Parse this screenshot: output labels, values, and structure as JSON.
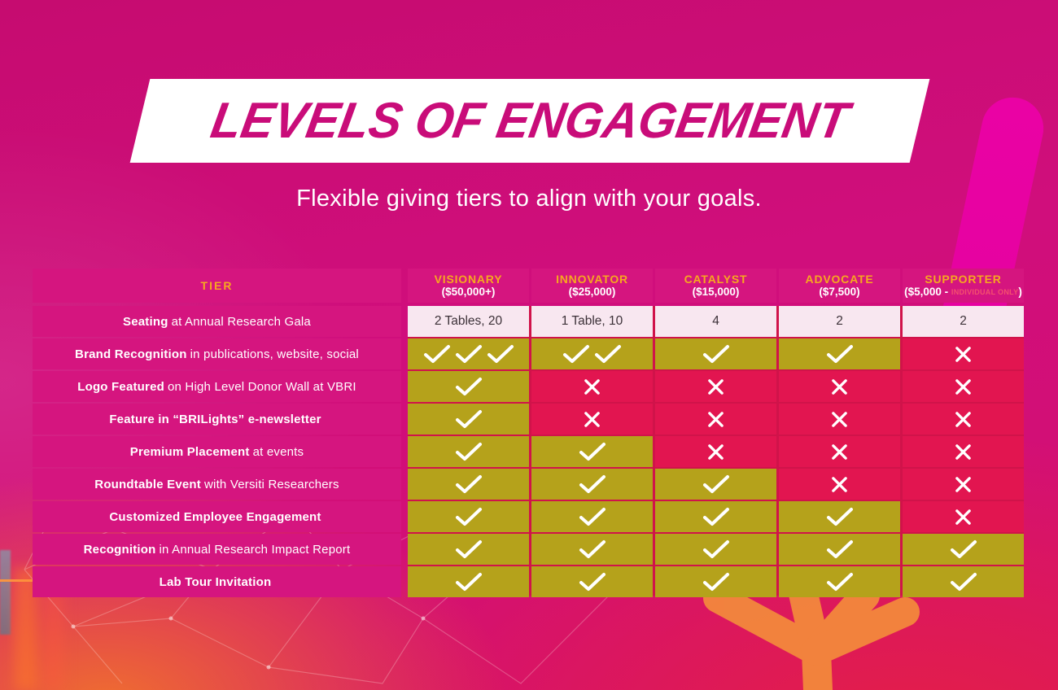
{
  "title": "LEVELS OF ENGAGEMENT",
  "subtitle": "Flexible giving tiers to align with your goals.",
  "colors": {
    "title_color": "#c90c79",
    "gold": "#f6a81f",
    "label_bg": "#d5157f",
    "check_bg": "#b5a21b",
    "x_bg": "#e21550",
    "light_bg": "#f8e7f0",
    "backdrop": "#d0134a",
    "accent_stripe": "#ea02a4",
    "orange_glow": "#f47e24"
  },
  "table": {
    "tier_label": "TIER",
    "columns": [
      {
        "name": "VISIONARY",
        "amount": "($50,000+)"
      },
      {
        "name": "INNOVATOR",
        "amount": "($25,000)"
      },
      {
        "name": "CATALYST",
        "amount": "($15,000)"
      },
      {
        "name": "ADVOCATE",
        "amount": "($7,500)"
      },
      {
        "name": "SUPPORTER",
        "amount": "($5,000 -",
        "note": "INDIVIDUAL ONLY",
        "amount_suffix": ")"
      }
    ],
    "rows": [
      {
        "label_bold": "Seating",
        "label_rest": "at Annual Research Gala",
        "cells": [
          {
            "type": "text",
            "value": "2 Tables, 20"
          },
          {
            "type": "text",
            "value": "1 Table, 10"
          },
          {
            "type": "text",
            "value": "4"
          },
          {
            "type": "text",
            "value": "2"
          },
          {
            "type": "text",
            "value": "2"
          }
        ]
      },
      {
        "label_bold": "Brand Recognition",
        "label_rest": "in publications, website, social",
        "cells": [
          {
            "type": "check",
            "count": 3
          },
          {
            "type": "check",
            "count": 2
          },
          {
            "type": "check",
            "count": 1
          },
          {
            "type": "check",
            "count": 1
          },
          {
            "type": "x"
          }
        ]
      },
      {
        "label_bold": "Logo Featured",
        "label_rest": "on High Level Donor Wall at VBRI",
        "cells": [
          {
            "type": "check",
            "count": 1
          },
          {
            "type": "x"
          },
          {
            "type": "x"
          },
          {
            "type": "x"
          },
          {
            "type": "x"
          }
        ]
      },
      {
        "label_bold": "Feature in “BRILights” e-newsletter",
        "label_rest": "",
        "cells": [
          {
            "type": "check",
            "count": 1
          },
          {
            "type": "x"
          },
          {
            "type": "x"
          },
          {
            "type": "x"
          },
          {
            "type": "x"
          }
        ]
      },
      {
        "label_bold": "Premium Placement",
        "label_rest": "at events",
        "cells": [
          {
            "type": "check",
            "count": 1
          },
          {
            "type": "check",
            "count": 1
          },
          {
            "type": "x"
          },
          {
            "type": "x"
          },
          {
            "type": "x"
          }
        ]
      },
      {
        "label_bold": "Roundtable Event",
        "label_rest": "with Versiti Researchers",
        "cells": [
          {
            "type": "check",
            "count": 1
          },
          {
            "type": "check",
            "count": 1
          },
          {
            "type": "check",
            "count": 1
          },
          {
            "type": "x"
          },
          {
            "type": "x"
          }
        ]
      },
      {
        "label_bold": "Customized Employee Engagement",
        "label_rest": "",
        "cells": [
          {
            "type": "check",
            "count": 1
          },
          {
            "type": "check",
            "count": 1
          },
          {
            "type": "check",
            "count": 1
          },
          {
            "type": "check",
            "count": 1
          },
          {
            "type": "x"
          }
        ]
      },
      {
        "label_bold": "Recognition",
        "label_rest": "in Annual Research Impact Report",
        "cells": [
          {
            "type": "check",
            "count": 1
          },
          {
            "type": "check",
            "count": 1
          },
          {
            "type": "check",
            "count": 1
          },
          {
            "type": "check",
            "count": 1
          },
          {
            "type": "check",
            "count": 1
          }
        ]
      },
      {
        "label_bold": "Lab Tour Invitation",
        "label_rest": "",
        "cells": [
          {
            "type": "check",
            "count": 1
          },
          {
            "type": "check",
            "count": 1
          },
          {
            "type": "check",
            "count": 1
          },
          {
            "type": "check",
            "count": 1
          },
          {
            "type": "check",
            "count": 1
          }
        ]
      }
    ]
  }
}
